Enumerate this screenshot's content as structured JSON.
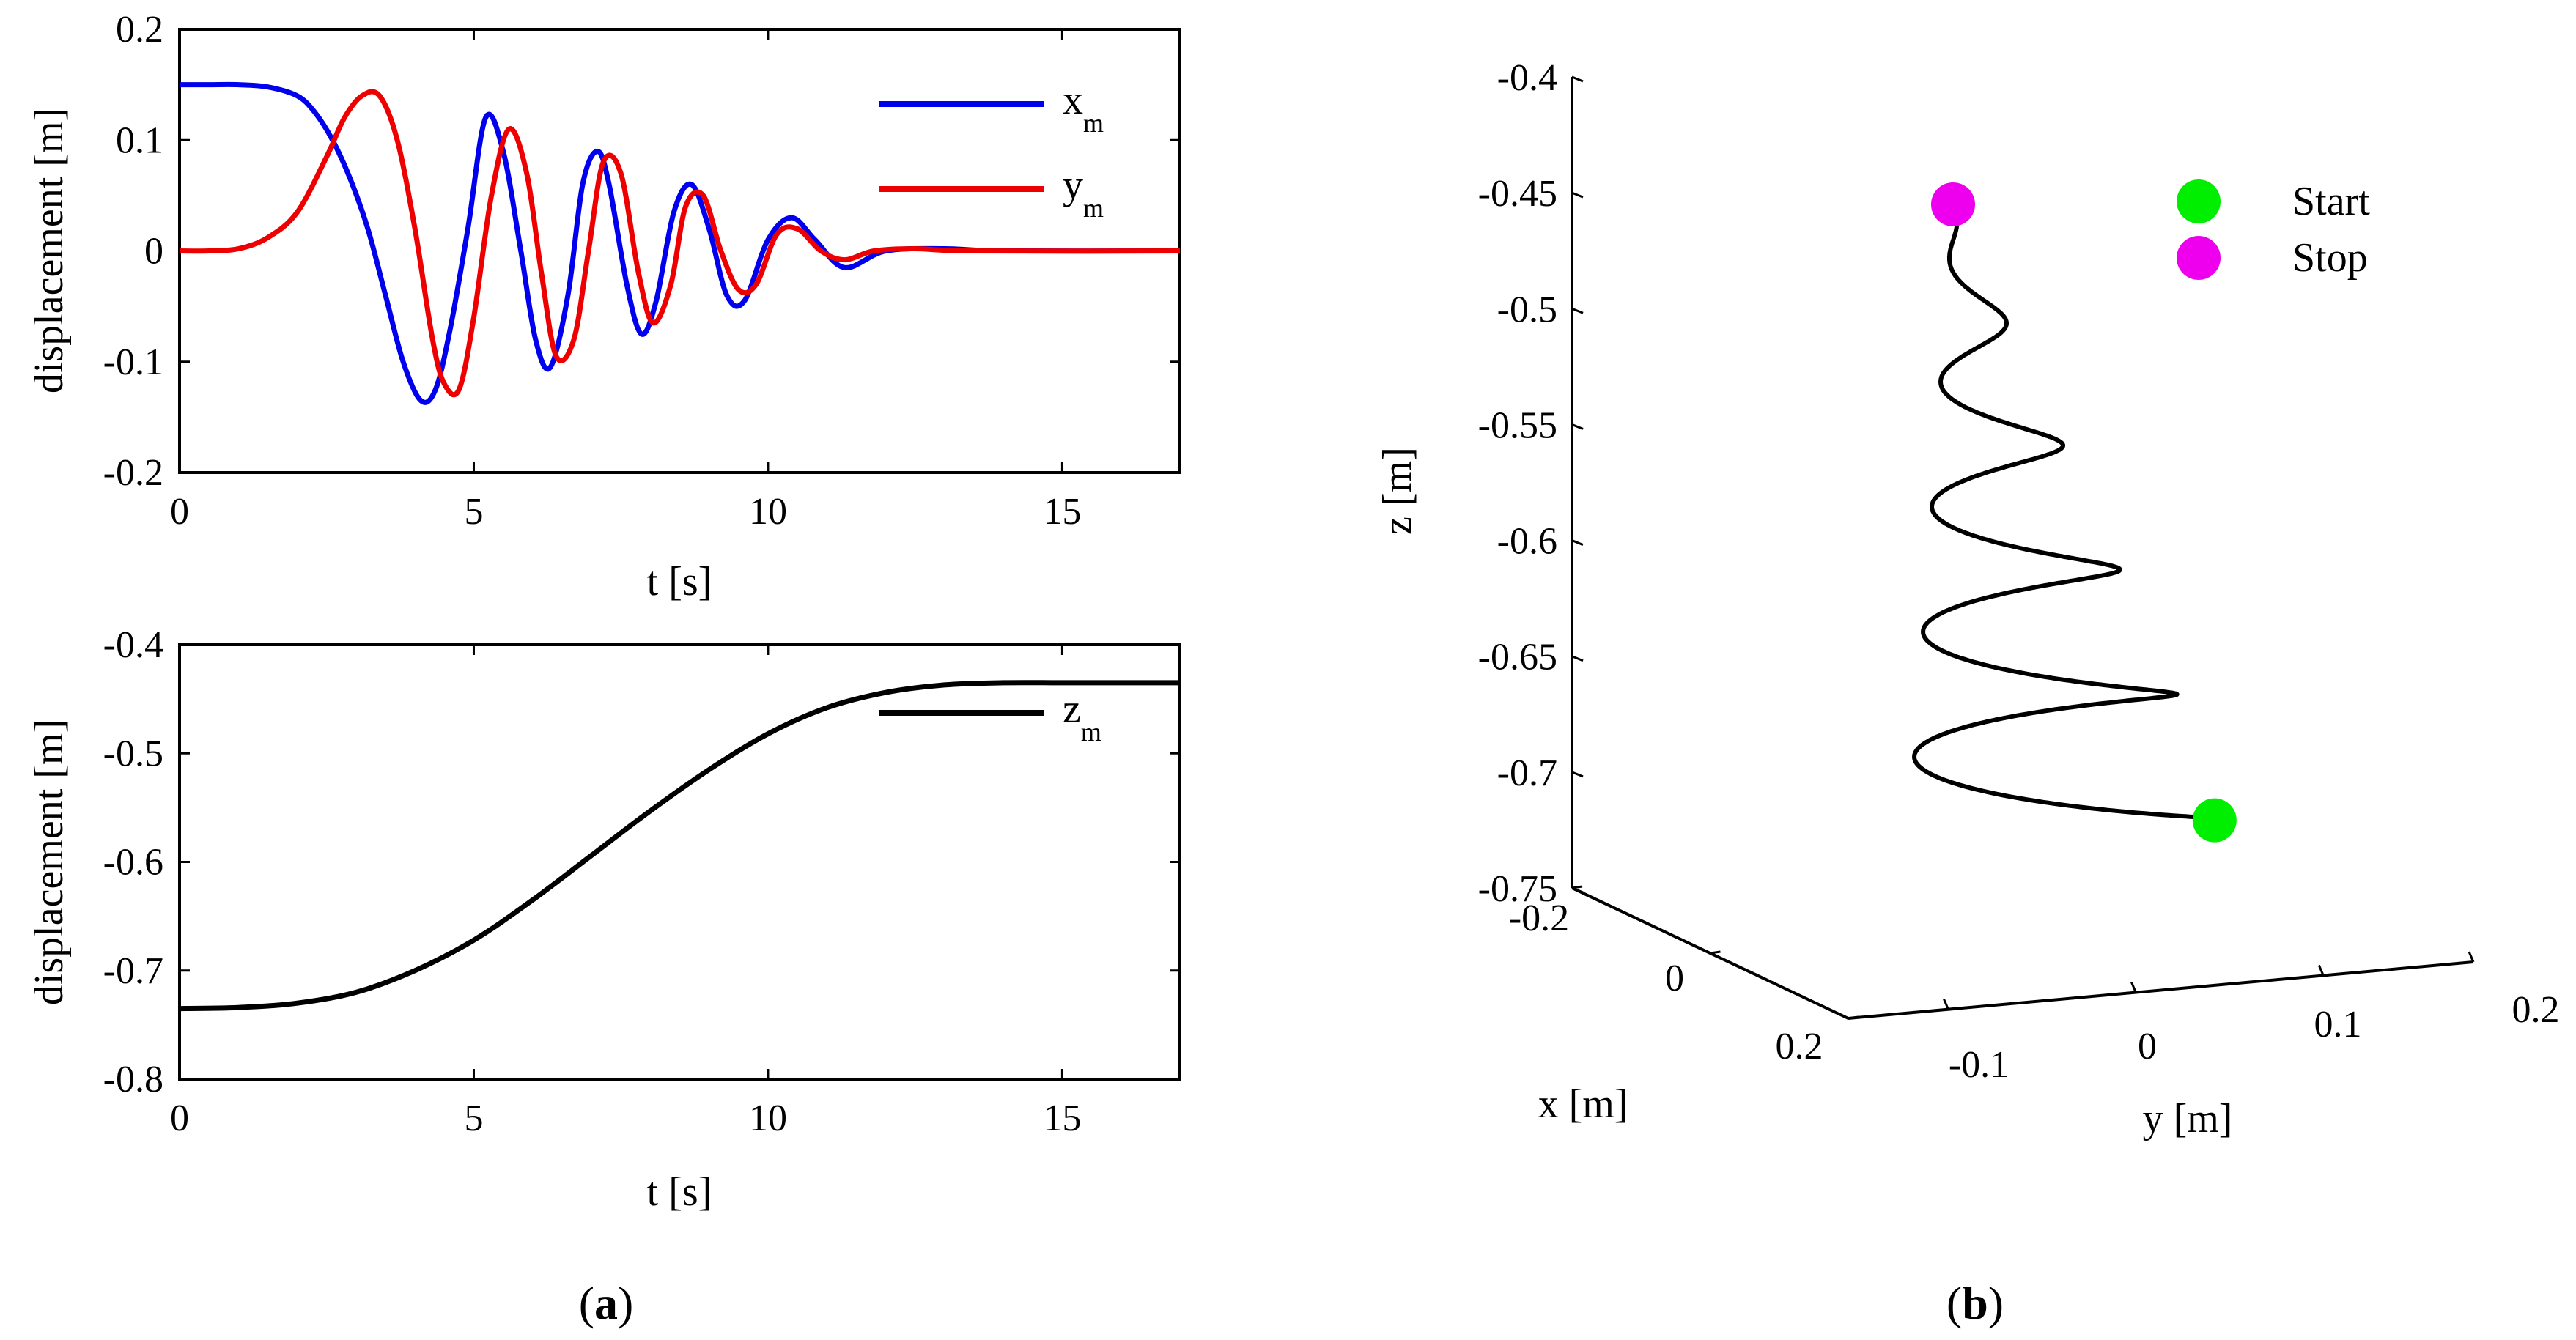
{
  "chart_data": [
    {
      "type": "line",
      "panel": "a-top",
      "title": "",
      "xlabel": "t [s]",
      "ylabel": "displacement [m]",
      "xlim": [
        0,
        17
      ],
      "ylim": [
        -0.2,
        0.2
      ],
      "xticks": [
        0,
        5,
        10,
        15
      ],
      "xtick_labels": [
        "0",
        "5",
        "10",
        "15"
      ],
      "yticks": [
        0.2,
        0.1,
        0,
        -0.1,
        -0.2
      ],
      "ytick_labels": [
        "0.2",
        "0.1",
        "0",
        "-0.1",
        "-0.2"
      ],
      "legend_position": "top-right",
      "series": [
        {
          "name": "x",
          "subscript": "m",
          "color": "#0000ee",
          "x": [
            0,
            0.5,
            1,
            1.5,
            2,
            2.3,
            2.6,
            2.9,
            3.2,
            3.5,
            3.8,
            4.1,
            4.35,
            4.6,
            4.9,
            5.2,
            5.5,
            5.8,
            6.05,
            6.3,
            6.6,
            6.85,
            7.1,
            7.3,
            7.6,
            7.85,
            8.1,
            8.4,
            8.7,
            9.0,
            9.3,
            9.6,
            10.0,
            10.4,
            10.8,
            11.3,
            12.0,
            13.0,
            14.0,
            17.0
          ],
          "values": [
            0.15,
            0.15,
            0.15,
            0.148,
            0.14,
            0.125,
            0.1,
            0.065,
            0.02,
            -0.04,
            -0.1,
            -0.135,
            -0.125,
            -0.07,
            0.02,
            0.12,
            0.09,
            0.0,
            -0.08,
            -0.105,
            -0.04,
            0.06,
            0.09,
            0.06,
            -0.03,
            -0.075,
            -0.045,
            0.035,
            0.06,
            0.02,
            -0.04,
            -0.045,
            0.01,
            0.03,
            0.01,
            -0.015,
            0.0,
            0.002,
            0.0,
            0.0
          ]
        },
        {
          "name": "y",
          "subscript": "m",
          "color": "#ee0000",
          "x": [
            0,
            0.5,
            1,
            1.5,
            2,
            2.5,
            2.8,
            3.1,
            3.4,
            3.7,
            4.0,
            4.3,
            4.5,
            4.75,
            5.0,
            5.3,
            5.6,
            5.9,
            6.15,
            6.4,
            6.7,
            6.95,
            7.2,
            7.5,
            7.8,
            8.05,
            8.35,
            8.6,
            8.9,
            9.2,
            9.5,
            9.8,
            10.15,
            10.5,
            10.9,
            11.3,
            11.8,
            12.5,
            13.5,
            17.0
          ],
          "values": [
            0.0,
            0.0,
            0.002,
            0.012,
            0.035,
            0.085,
            0.12,
            0.14,
            0.14,
            0.1,
            0.02,
            -0.08,
            -0.12,
            -0.125,
            -0.06,
            0.05,
            0.11,
            0.07,
            -0.02,
            -0.095,
            -0.08,
            0.0,
            0.08,
            0.07,
            -0.02,
            -0.065,
            -0.03,
            0.04,
            0.05,
            0.0,
            -0.035,
            -0.03,
            0.015,
            0.02,
            0.0,
            -0.008,
            0.0,
            0.002,
            0.0,
            0.0
          ]
        }
      ]
    },
    {
      "type": "line",
      "panel": "a-bottom",
      "title": "",
      "xlabel": "t [s]",
      "ylabel": "displacement [m]",
      "xlim": [
        0,
        17
      ],
      "ylim": [
        -0.8,
        -0.4
      ],
      "xticks": [
        0,
        5,
        10,
        15
      ],
      "xtick_labels": [
        "0",
        "5",
        "10",
        "15"
      ],
      "yticks": [
        -0.4,
        -0.5,
        -0.6,
        -0.7,
        -0.8
      ],
      "ytick_labels": [
        "-0.4",
        "-0.5",
        "-0.6",
        "-0.7",
        "-0.8"
      ],
      "legend_position": "top-right",
      "series": [
        {
          "name": "z",
          "subscript": "m",
          "color": "#000000",
          "x": [
            0,
            1,
            2,
            3,
            4,
            5,
            6,
            7,
            8,
            9,
            10,
            11,
            12,
            13,
            14,
            15,
            16,
            17
          ],
          "values": [
            -0.735,
            -0.734,
            -0.73,
            -0.72,
            -0.7,
            -0.672,
            -0.635,
            -0.594,
            -0.553,
            -0.515,
            -0.482,
            -0.458,
            -0.444,
            -0.437,
            -0.435,
            -0.435,
            -0.435,
            -0.435
          ]
        }
      ]
    },
    {
      "type": "line",
      "panel": "b",
      "subtype": "3d-trajectory",
      "title": "",
      "xlabel": "x [m]",
      "ylabel": "y [m]",
      "zlabel": "z [m]",
      "xlim": [
        -0.2,
        0.2
      ],
      "ylim": [
        -0.15,
        0.2
      ],
      "zlim": [
        -0.75,
        -0.4
      ],
      "xtick_labels": [
        "-0.2",
        "0",
        "0.2"
      ],
      "ytick_labels": [
        "-0.1",
        "0",
        "0.1",
        "0.2"
      ],
      "ztick_labels": [
        "-0.4",
        "-0.45",
        "-0.5",
        "-0.55",
        "-0.6",
        "-0.65",
        "-0.7",
        "-0.75"
      ],
      "spiral": {
        "turns": 5,
        "z_start": -0.725,
        "z_end": -0.455,
        "radius_start": 0.15,
        "radius_end": 0.0,
        "color": "#000000"
      },
      "legend": [
        {
          "label": "Start",
          "color": "#00ee00"
        },
        {
          "label": "Stop",
          "color": "#ee00ee"
        }
      ],
      "legend_position": "top-right"
    }
  ],
  "captions": {
    "a": "a",
    "b": "b"
  }
}
